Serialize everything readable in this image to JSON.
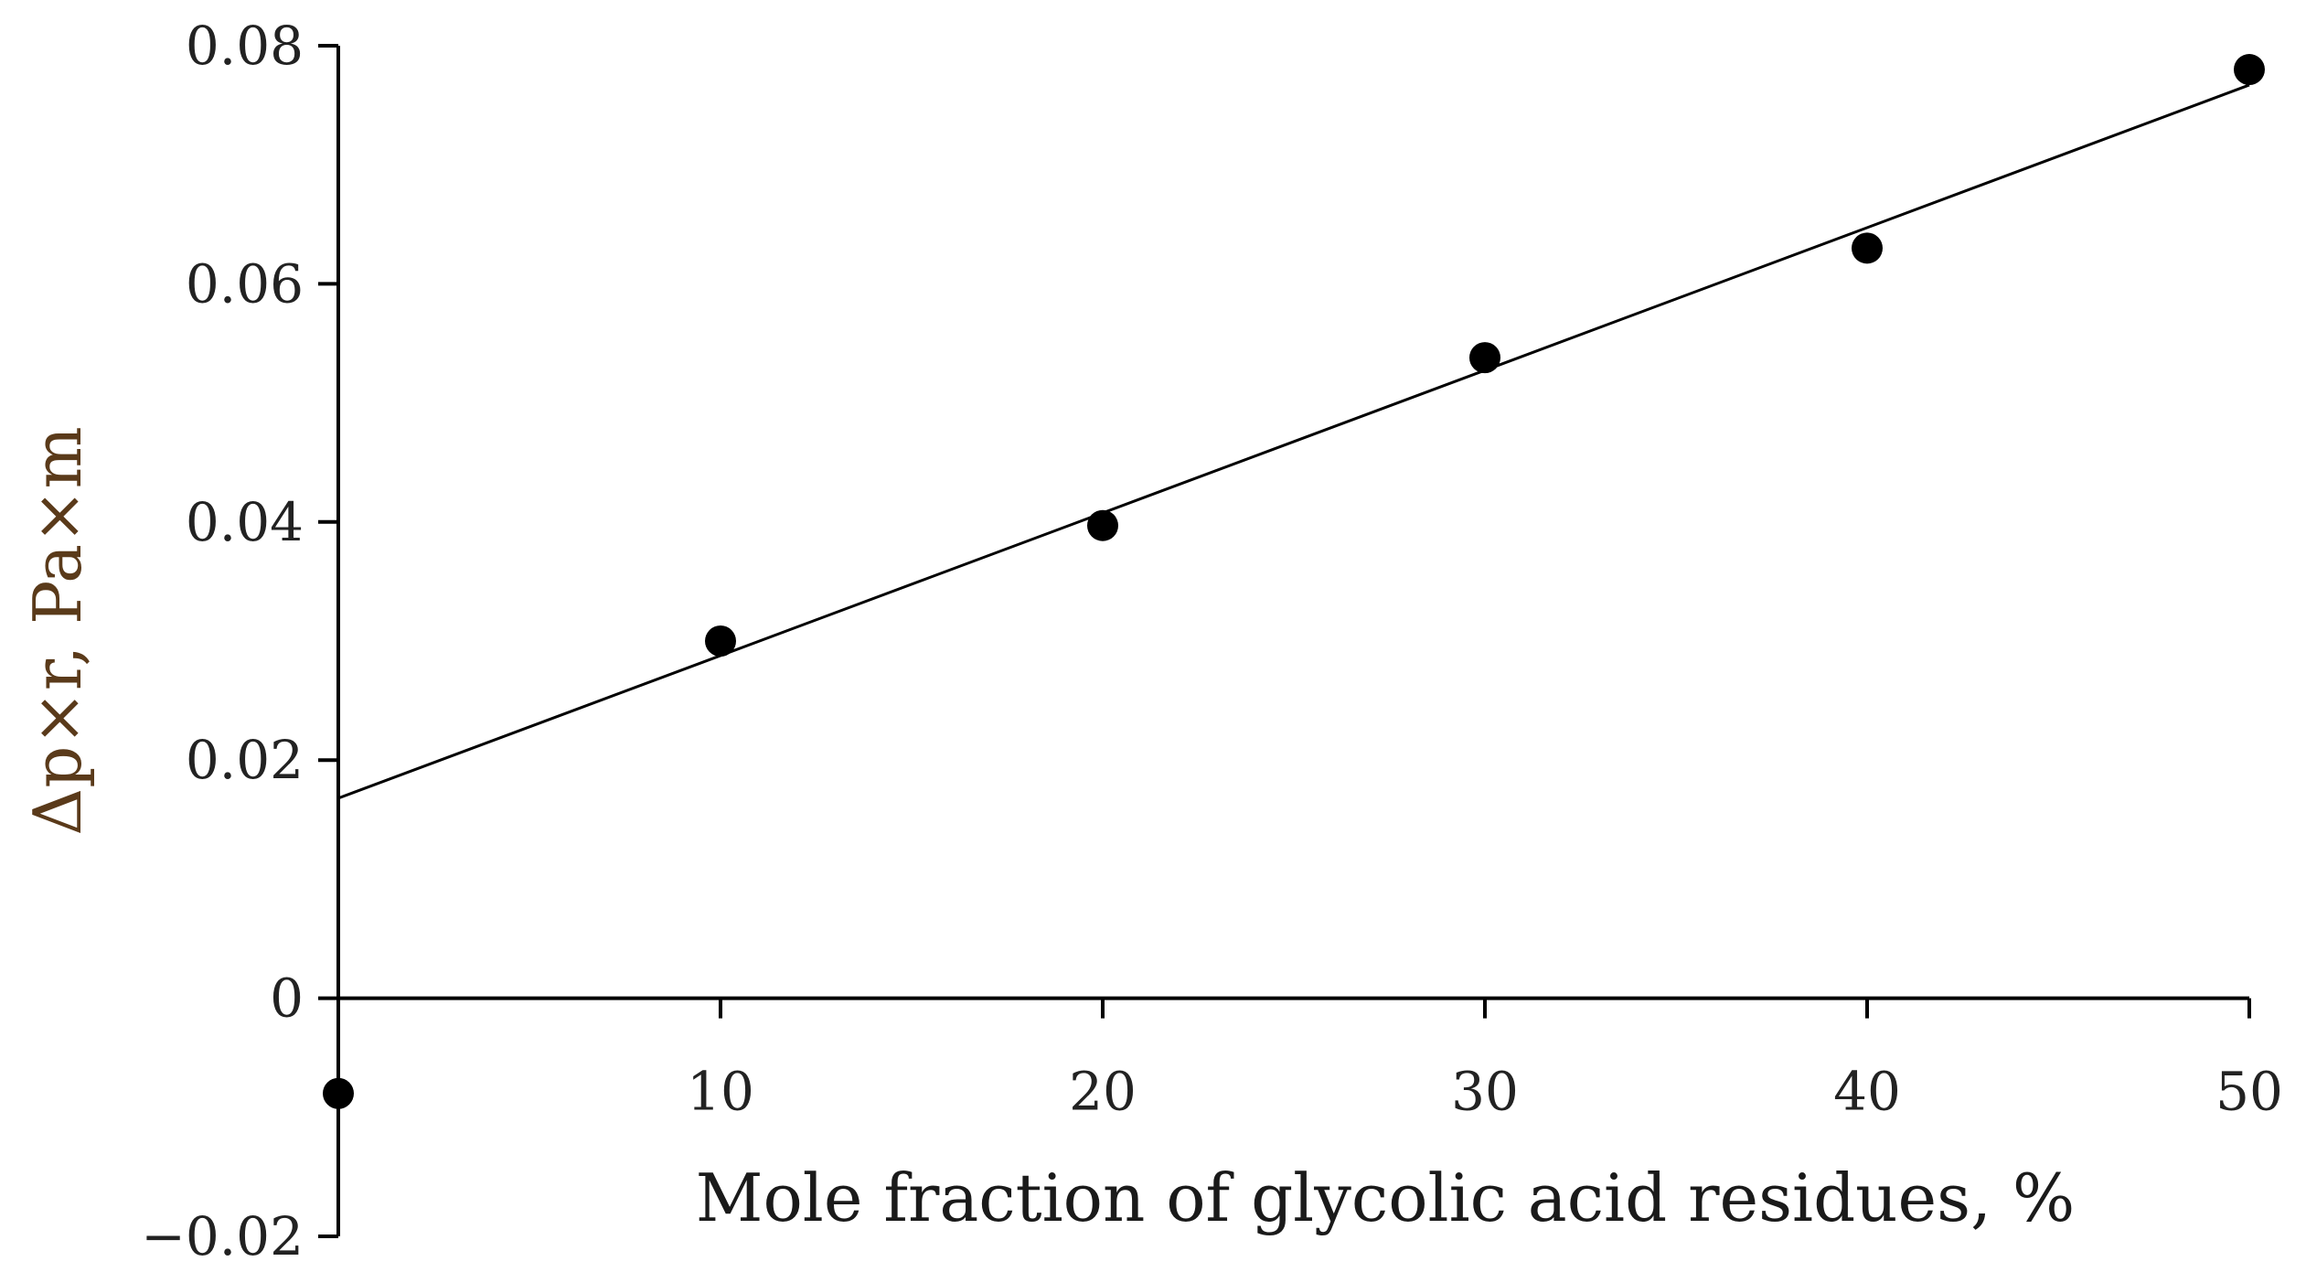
{
  "chart_data": {
    "type": "scatter",
    "title": "",
    "xlabel": "Mole fraction of glycolic acid residues,  %",
    "ylabel": "Δp×r, Pa×m",
    "xlim": [
      0,
      50
    ],
    "ylim": [
      -0.02,
      0.08
    ],
    "x_ticks": [
      "10",
      "20",
      "30",
      "40",
      "50"
    ],
    "y_ticks": [
      "−0.02",
      "0",
      "0.02",
      "0.04",
      "0.06",
      "0.08"
    ],
    "grid": false,
    "legend": "none",
    "series": [
      {
        "x": [
          0,
          10,
          20,
          30,
          40,
          50
        ],
        "y": [
          -0.008,
          0.03,
          0.0397,
          0.0538,
          0.063,
          0.078
        ]
      }
    ],
    "trendline": {
      "x": [
        0,
        50
      ],
      "y": [
        0.0168,
        0.0767
      ]
    },
    "colors": {
      "axis": "#000000",
      "points": "#000000",
      "xlabel": "#1a1a1a",
      "ylabel": "#5a3a1a",
      "trendline": "#000000"
    }
  }
}
